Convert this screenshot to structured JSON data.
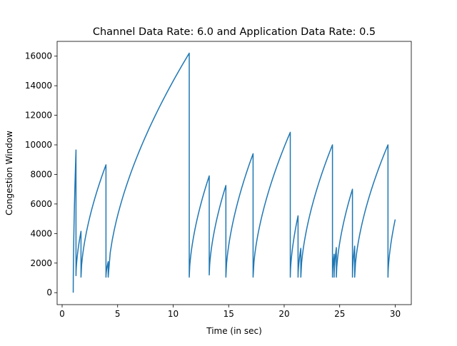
{
  "chart_data": {
    "type": "line",
    "title": "Channel Data Rate: 6.0 and Application Data Rate: 0.5",
    "xlabel": "Time (in sec)",
    "ylabel": "Congestion Window",
    "xlim": [
      -0.45,
      31.45
    ],
    "ylim": [
      -810,
      17000
    ],
    "xticks": [
      0,
      5,
      10,
      15,
      20,
      25,
      30
    ],
    "yticks": [
      0,
      2000,
      4000,
      6000,
      8000,
      10000,
      12000,
      14000,
      16000
    ],
    "grid": false,
    "color": "#1f77b4",
    "series": [
      {
        "cycles": [
          {
            "t0": 1.0,
            "t1": 1.25,
            "y0": 0,
            "y1": 9650
          },
          {
            "t0": 1.25,
            "t1": 1.7,
            "y0": 1150,
            "y1": 4150
          },
          {
            "t0": 1.7,
            "t1": 3.95,
            "y0": 1050,
            "y1": 8650
          },
          {
            "t0": 3.95,
            "t1": 4.15,
            "y0": 1050,
            "y1": 2100
          },
          {
            "t0": 4.15,
            "t1": 11.45,
            "y0": 1050,
            "y1": 16200
          },
          {
            "t0": 11.45,
            "t1": 13.25,
            "y0": 1050,
            "y1": 7900
          },
          {
            "t0": 13.25,
            "t1": 14.75,
            "y0": 1200,
            "y1": 7250
          },
          {
            "t0": 14.75,
            "t1": 17.2,
            "y0": 1050,
            "y1": 9400
          },
          {
            "t0": 17.2,
            "t1": 20.55,
            "y0": 1050,
            "y1": 10850
          },
          {
            "t0": 20.55,
            "t1": 21.25,
            "y0": 1050,
            "y1": 5200
          },
          {
            "t0": 21.25,
            "t1": 21.5,
            "y0": 1050,
            "y1": 3000
          },
          {
            "t0": 21.5,
            "t1": 24.35,
            "y0": 1050,
            "y1": 10000
          },
          {
            "t0": 24.35,
            "t1": 24.5,
            "y0": 1050,
            "y1": 2600
          },
          {
            "t0": 24.5,
            "t1": 24.7,
            "y0": 1050,
            "y1": 3050
          },
          {
            "t0": 24.7,
            "t1": 26.15,
            "y0": 1050,
            "y1": 7000
          },
          {
            "t0": 26.15,
            "t1": 26.35,
            "y0": 1050,
            "y1": 3150
          },
          {
            "t0": 26.35,
            "t1": 29.35,
            "y0": 1050,
            "y1": 10000
          },
          {
            "t0": 29.35,
            "t1": 30.0,
            "y0": 1050,
            "y1": 4950
          }
        ]
      }
    ]
  }
}
